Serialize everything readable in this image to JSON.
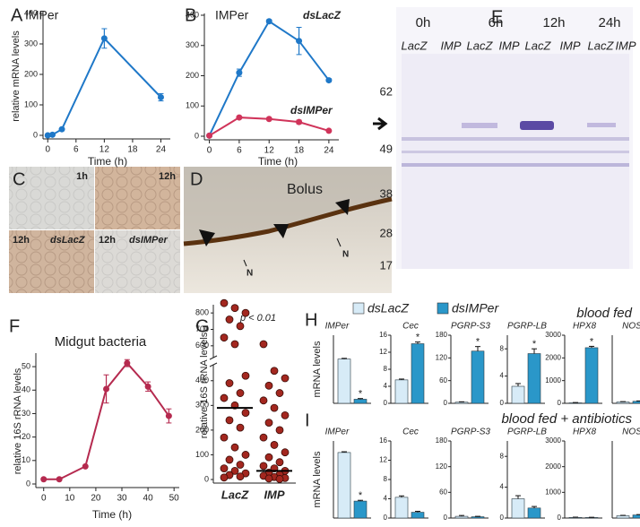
{
  "chart_data": [
    {
      "panel": "A",
      "type": "line",
      "title": "IMPer",
      "x_label": "Time (h)",
      "y_label": "relative mRNA levels",
      "xlim": [
        -1,
        26
      ],
      "ylim": [
        0,
        400
      ],
      "xticks": [
        0,
        6,
        12,
        18,
        24
      ],
      "yticks": [
        0,
        100,
        200,
        300,
        400
      ],
      "series": [
        {
          "color": "#1f78c8",
          "x": [
            0,
            1,
            3,
            12,
            24
          ],
          "values": [
            0,
            2,
            20,
            318,
            125
          ],
          "errors": [
            0,
            0,
            0,
            32,
            12
          ]
        }
      ]
    },
    {
      "panel": "B",
      "type": "line",
      "title": "IMPer",
      "x_label": "Time (h)",
      "xlim": [
        -1,
        26
      ],
      "ylim": [
        0,
        400
      ],
      "xticks": [
        0,
        6,
        12,
        18,
        24
      ],
      "yticks": [
        0,
        100,
        200,
        300,
        400
      ],
      "series": [
        {
          "name": "dsLacZ",
          "color": "#1f78c8",
          "x": [
            0,
            6,
            12,
            18,
            24
          ],
          "values": [
            2,
            210,
            380,
            315,
            185
          ],
          "errors": [
            0,
            12,
            5,
            45,
            5
          ]
        },
        {
          "name": "dsIMPer",
          "color": "#d0345a",
          "x": [
            0,
            6,
            12,
            18,
            24
          ],
          "values": [
            2,
            62,
            57,
            47,
            18
          ],
          "errors": [
            0,
            3,
            3,
            6,
            3
          ]
        }
      ]
    },
    {
      "panel": "F",
      "type": "line",
      "title": "Midgut bacteria",
      "x_label": "Time (h)",
      "y_label": "relative 16S rRNA levels",
      "xlim": [
        -3,
        52
      ],
      "ylim": [
        0,
        55
      ],
      "xticks": [
        0,
        10,
        20,
        30,
        40,
        50
      ],
      "yticks": [
        0,
        10,
        20,
        30,
        40,
        50
      ],
      "series": [
        {
          "color": "#b52a4f",
          "x": [
            0,
            6,
            16,
            24,
            32,
            40,
            48
          ],
          "values": [
            2,
            2,
            7.5,
            40.5,
            51.5,
            41.5,
            29
          ],
          "errors": [
            0,
            0,
            0,
            6,
            1.5,
            2,
            3
          ]
        }
      ]
    },
    {
      "panel": "G",
      "type": "strip",
      "y_label": "relative 16S rRNA levels",
      "annotation": "p < 0.01",
      "color": "#a3271f",
      "categories": [
        "LacZ",
        "IMP"
      ],
      "ylim": [
        0,
        850
      ],
      "ybreak": [
        450,
        550
      ],
      "yticks": [
        0,
        100,
        200,
        300,
        400,
        600,
        700,
        800
      ],
      "values": [
        [
          860,
          830,
          800,
          760,
          720,
          650,
          610,
          420,
          390,
          350,
          330,
          300,
          270,
          240,
          210,
          170,
          130,
          100,
          80,
          60,
          45,
          35,
          25,
          18,
          12,
          8
        ],
        [
          610,
          440,
          410,
          380,
          350,
          320,
          290,
          260,
          230,
          200,
          170,
          140,
          110,
          90,
          70,
          55,
          45,
          35,
          28,
          20,
          15,
          10,
          6,
          4,
          2
        ]
      ],
      "center_values": [
        290,
        35
      ]
    },
    {
      "panel": "H",
      "type": "bar",
      "title": "blood fed",
      "y_label": "mRNA levels",
      "categories": [
        "IMPer",
        "Cec",
        "PGRP-S3",
        "PGRP-LB",
        "HPX8",
        "NOS"
      ],
      "axes": [
        {
          "ylim": [
            0,
            100
          ]
        },
        {
          "ylim": [
            0,
            16
          ],
          "yticks": [
            0,
            4,
            8,
            12,
            16
          ]
        },
        {
          "ylim": [
            0,
            180
          ],
          "yticks": [
            0,
            60,
            120,
            180
          ]
        },
        {
          "ylim": [
            0,
            10
          ],
          "yticks": [
            0,
            4,
            8
          ]
        },
        {
          "ylim": [
            0,
            3000
          ],
          "yticks": [
            0,
            1000,
            2000,
            3000
          ]
        },
        {
          "ylim": [
            0,
            100
          ]
        }
      ],
      "series": [
        {
          "name": "dsLacZ",
          "color": "#d7ebf7",
          "values": [
            65,
            5.5,
            3,
            2.5,
            20,
            2
          ],
          "errors": [
            1,
            0.2,
            1,
            0.4,
            15,
            0.5
          ]
        },
        {
          "name": "dsIMPer",
          "color": "#2a97c9",
          "values": [
            6,
            14,
            138,
            7.3,
            2450,
            3
          ],
          "errors": [
            1,
            0.4,
            12,
            0.7,
            60,
            0.5
          ]
        }
      ],
      "significance": {
        "label": "*",
        "categories": [
          0,
          1,
          2,
          3,
          4
        ]
      }
    },
    {
      "panel": "I",
      "type": "bar",
      "title": "blood fed + antibiotics",
      "y_label": "mRNA levels",
      "categories": [
        "IMPer",
        "Cec",
        "PGRP-S3",
        "PGRP-LB",
        "HPX8",
        "NOS"
      ],
      "axes": [
        {
          "ylim": [
            0,
            100
          ]
        },
        {
          "ylim": [
            0,
            16
          ],
          "yticks": [
            0,
            4,
            8,
            12,
            16
          ]
        },
        {
          "ylim": [
            0,
            180
          ],
          "yticks": [
            0,
            60,
            120,
            180
          ]
        },
        {
          "ylim": [
            0,
            10
          ],
          "yticks": [
            0,
            4,
            8
          ]
        },
        {
          "ylim": [
            0,
            3000
          ],
          "yticks": [
            0,
            1000,
            2000,
            3000
          ]
        },
        {
          "ylim": [
            0,
            100
          ]
        }
      ],
      "series": [
        {
          "color": "#d7ebf7",
          "values": [
            85,
            4.3,
            4,
            2.5,
            25,
            3
          ],
          "errors": [
            1,
            0.3,
            2,
            0.4,
            10,
            0.5
          ]
        },
        {
          "color": "#2a97c9",
          "values": [
            22,
            1.2,
            3,
            1.3,
            20,
            4
          ],
          "errors": [
            1,
            0.2,
            1,
            0.2,
            10,
            0.5
          ]
        }
      ],
      "significance": {
        "label": "*",
        "categories": [
          0
        ]
      }
    }
  ],
  "panels": {
    "C": {
      "label": "C",
      "tiles": [
        "1h",
        "12h",
        "12h",
        "12h"
      ],
      "tile_notes": [
        "dsLacZ",
        "dsIMPer"
      ]
    },
    "D": {
      "label": "D",
      "text": "Bolus",
      "marks": [
        "N",
        "N"
      ]
    },
    "E": {
      "label": "E",
      "times": [
        "0h",
        "6h",
        "12h",
        "24h"
      ],
      "lanes": [
        "LacZ",
        "IMP",
        "LacZ",
        "IMP",
        "LacZ",
        "IMP",
        "LacZ",
        "IMP"
      ],
      "markers": [
        62,
        49,
        38,
        28,
        17
      ]
    }
  }
}
